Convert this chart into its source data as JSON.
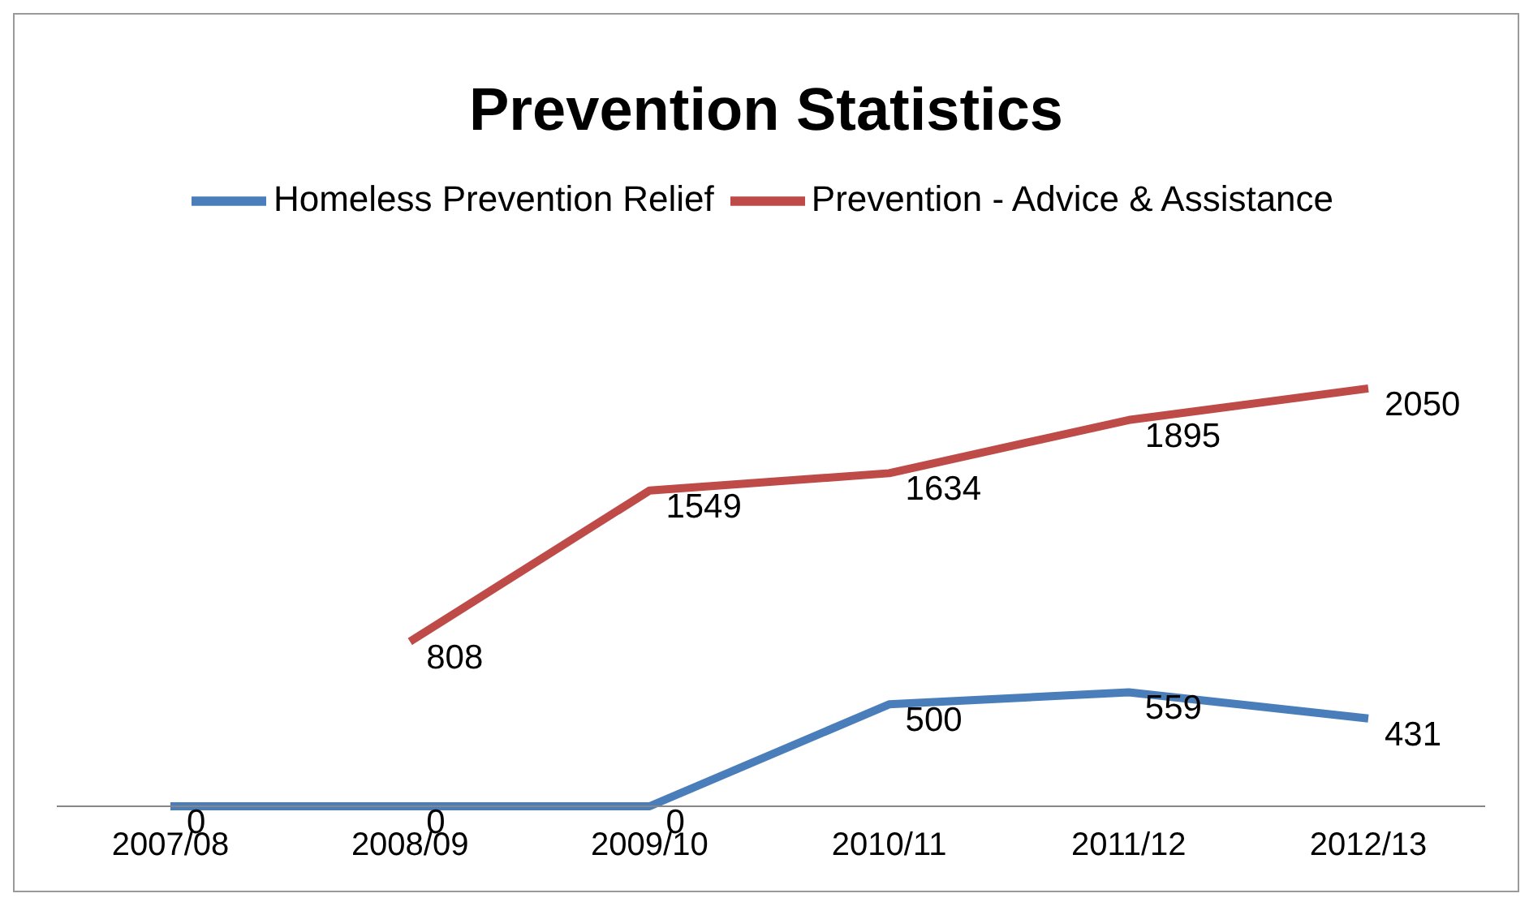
{
  "chart_data": {
    "type": "line",
    "title": "Prevention Statistics",
    "categories": [
      "2007/08",
      "2008/09",
      "2009/10",
      "2010/11",
      "2011/12",
      "2012/13"
    ],
    "series": [
      {
        "name": "Homeless Prevention Relief",
        "color": "#4a7ebb",
        "values": [
          0,
          0,
          0,
          500,
          559,
          431
        ]
      },
      {
        "name": "Prevention  - Advice & Assistance",
        "color": "#be4b48",
        "values": [
          null,
          808,
          1549,
          1634,
          1895,
          2050
        ]
      }
    ],
    "data_labels": true,
    "legend": "top",
    "grid": false,
    "marker": "none",
    "line_style": "solid"
  }
}
